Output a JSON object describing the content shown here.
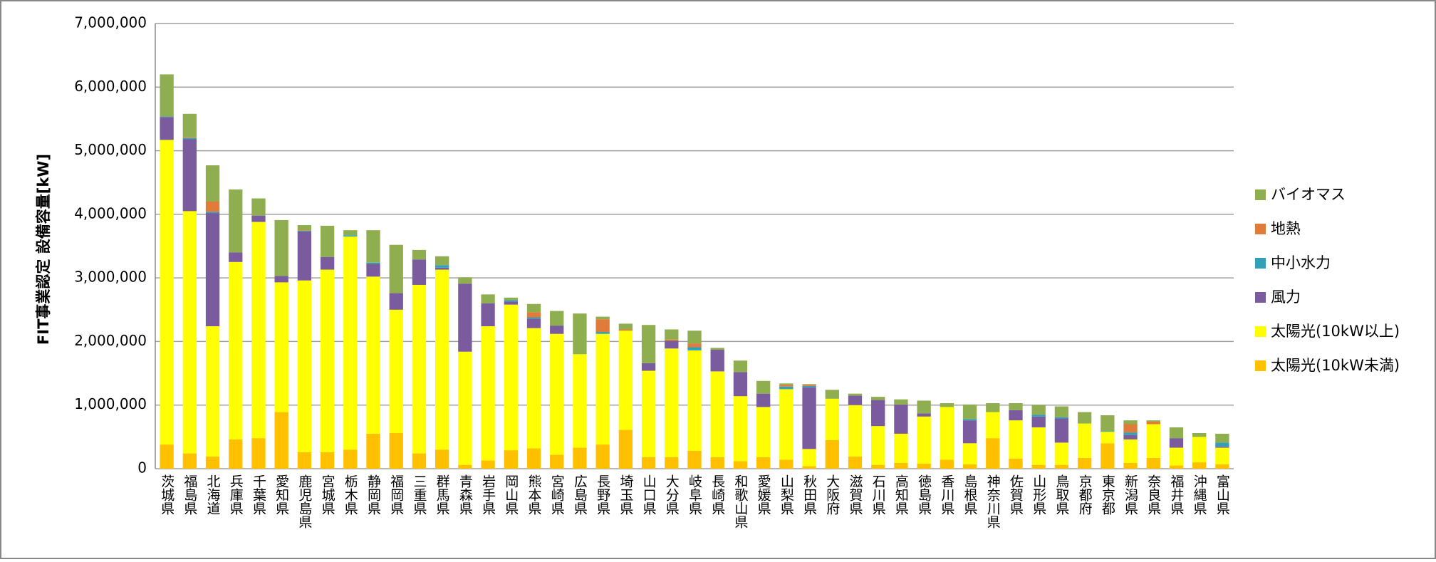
{
  "chart_data": {
    "type": "stacked-bar",
    "y_label": "FIT事業認定 設備容量[kW]",
    "categories": [
      "茨城県",
      "福島県",
      "北海道",
      "兵庫県",
      "千葉県",
      "愛知県",
      "鹿児島県",
      "宮城県",
      "栃木県",
      "静岡県",
      "福岡県",
      "三重県",
      "群馬県",
      "青森県",
      "岩手県",
      "岡山県",
      "熊本県",
      "宮崎県",
      "広島県",
      "長野県",
      "埼玉県",
      "山口県",
      "大分県",
      "岐阜県",
      "長崎県",
      "和歌山県",
      "愛媛県",
      "山梨県",
      "秋田県",
      "大阪府",
      "滋賀県",
      "石川県",
      "高知県",
      "徳島県",
      "香川県",
      "島根県",
      "神奈川県",
      "佐賀県",
      "山形県",
      "鳥取県",
      "京都府",
      "東京都",
      "新潟県",
      "奈良県",
      "福井県",
      "沖縄県",
      "富山県"
    ],
    "series": [
      {
        "name": "太陽光(10kW未満)",
        "color": "#ffc000",
        "values": [
          380000,
          240000,
          190000,
          460000,
          480000,
          890000,
          260000,
          260000,
          300000,
          550000,
          560000,
          240000,
          300000,
          60000,
          130000,
          290000,
          320000,
          220000,
          330000,
          380000,
          610000,
          180000,
          180000,
          280000,
          180000,
          120000,
          180000,
          140000,
          40000,
          450000,
          190000,
          60000,
          90000,
          80000,
          140000,
          70000,
          480000,
          160000,
          60000,
          60000,
          170000,
          400000,
          90000,
          170000,
          50000,
          100000,
          70000
        ]
      },
      {
        "name": "太陽光(10kW以上)",
        "color": "#ffff00",
        "values": [
          4790000,
          3810000,
          2050000,
          2790000,
          3400000,
          2040000,
          2700000,
          2870000,
          3350000,
          2470000,
          1940000,
          2650000,
          2830000,
          1780000,
          2110000,
          2290000,
          1890000,
          1900000,
          1470000,
          1740000,
          1560000,
          1360000,
          1710000,
          1580000,
          1350000,
          1020000,
          790000,
          1110000,
          270000,
          650000,
          810000,
          610000,
          460000,
          740000,
          830000,
          330000,
          410000,
          600000,
          590000,
          350000,
          540000,
          180000,
          370000,
          530000,
          280000,
          400000,
          260000
        ]
      },
      {
        "name": "風力",
        "color": "#7a5c9e",
        "values": [
          360000,
          1130000,
          1780000,
          150000,
          100000,
          100000,
          770000,
          200000,
          0,
          200000,
          260000,
          400000,
          30000,
          1070000,
          360000,
          50000,
          150000,
          130000,
          0,
          0,
          0,
          120000,
          120000,
          0,
          340000,
          380000,
          210000,
          0,
          970000,
          0,
          150000,
          410000,
          460000,
          50000,
          0,
          360000,
          0,
          160000,
          170000,
          380000,
          0,
          0,
          70000,
          0,
          150000,
          0,
          20000
        ]
      },
      {
        "name": "中小水力",
        "color": "#31a0b8",
        "values": [
          10000,
          20000,
          20000,
          0,
          0,
          0,
          10000,
          0,
          20000,
          20000,
          0,
          0,
          40000,
          0,
          0,
          20000,
          20000,
          0,
          0,
          30000,
          0,
          0,
          0,
          50000,
          0,
          0,
          0,
          40000,
          20000,
          0,
          0,
          0,
          0,
          0,
          0,
          20000,
          0,
          0,
          30000,
          20000,
          0,
          10000,
          40000,
          0,
          0,
          0,
          60000
        ]
      },
      {
        "name": "地熱",
        "color": "#e07b39",
        "values": [
          0,
          10000,
          160000,
          0,
          0,
          0,
          10000,
          0,
          0,
          0,
          0,
          0,
          0,
          0,
          0,
          0,
          80000,
          0,
          0,
          200000,
          20000,
          0,
          20000,
          60000,
          0,
          0,
          0,
          30000,
          20000,
          0,
          0,
          0,
          0,
          0,
          0,
          0,
          0,
          0,
          0,
          0,
          0,
          0,
          130000,
          40000,
          0,
          0,
          0
        ]
      },
      {
        "name": "バイオマス",
        "color": "#8fae50",
        "values": [
          660000,
          370000,
          570000,
          990000,
          270000,
          880000,
          80000,
          490000,
          80000,
          510000,
          760000,
          150000,
          140000,
          100000,
          140000,
          40000,
          130000,
          230000,
          640000,
          40000,
          90000,
          600000,
          160000,
          200000,
          30000,
          180000,
          200000,
          20000,
          10000,
          140000,
          30000,
          50000,
          80000,
          200000,
          60000,
          230000,
          140000,
          110000,
          150000,
          170000,
          180000,
          250000,
          60000,
          20000,
          170000,
          60000,
          140000
        ]
      }
    ],
    "ylim": [
      0,
      7000000
    ],
    "yticks": [
      0,
      {
        "value": 1000000,
        "label": "1,000,000"
      },
      {
        "value": 2000000,
        "label": "2,000,000"
      },
      {
        "value": 3000000,
        "label": "3,000,000"
      },
      {
        "value": 4000000,
        "label": "4,000,000"
      },
      {
        "value": 5000000,
        "label": "5,000,000"
      },
      {
        "value": 6000000,
        "label": "6,000,000"
      },
      {
        "value": 7000000,
        "label": "7,000,000"
      }
    ],
    "grid": true,
    "legend": "right"
  }
}
